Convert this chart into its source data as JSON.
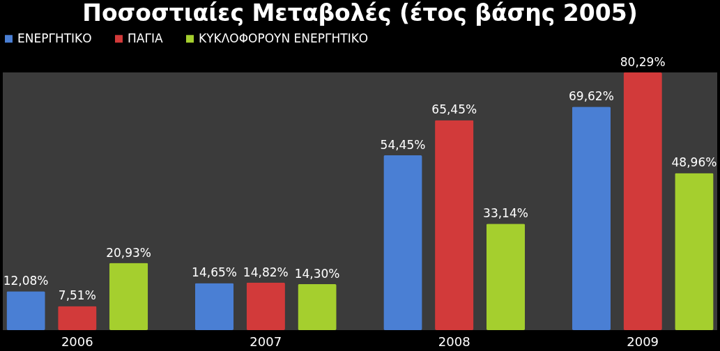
{
  "chart_data": {
    "type": "bar",
    "title": "Ποσοστιαίες Μεταβολές (έτος βάσης 2005)",
    "categories": [
      "2006",
      "2007",
      "2008",
      "2009"
    ],
    "series": [
      {
        "name": "ΕΝΕΡΓΗΤΙΚΟ",
        "color": "#4a7fd4",
        "values": [
          12.08,
          14.65,
          54.45,
          69.62
        ],
        "value_labels": [
          "12,08%",
          "14,65%",
          "54,45%",
          "69,62%"
        ]
      },
      {
        "name": "ΠΑΓΙΑ",
        "color": "#d23a3a",
        "values": [
          7.51,
          14.82,
          65.45,
          80.29
        ],
        "value_labels": [
          "7,51%",
          "14,82%",
          "65,45%",
          "80,29%"
        ]
      },
      {
        "name": "ΚΥΚΛΟΦΟΡΟΥΝ ΕΝΕΡΓΗΤΙΚΟ",
        "color": "#a5cf2e",
        "values": [
          20.93,
          14.3,
          33.14,
          48.96
        ],
        "value_labels": [
          "20,93%",
          "14,30%",
          "33,14%",
          "48,96%"
        ]
      }
    ],
    "legend": "top"
  }
}
